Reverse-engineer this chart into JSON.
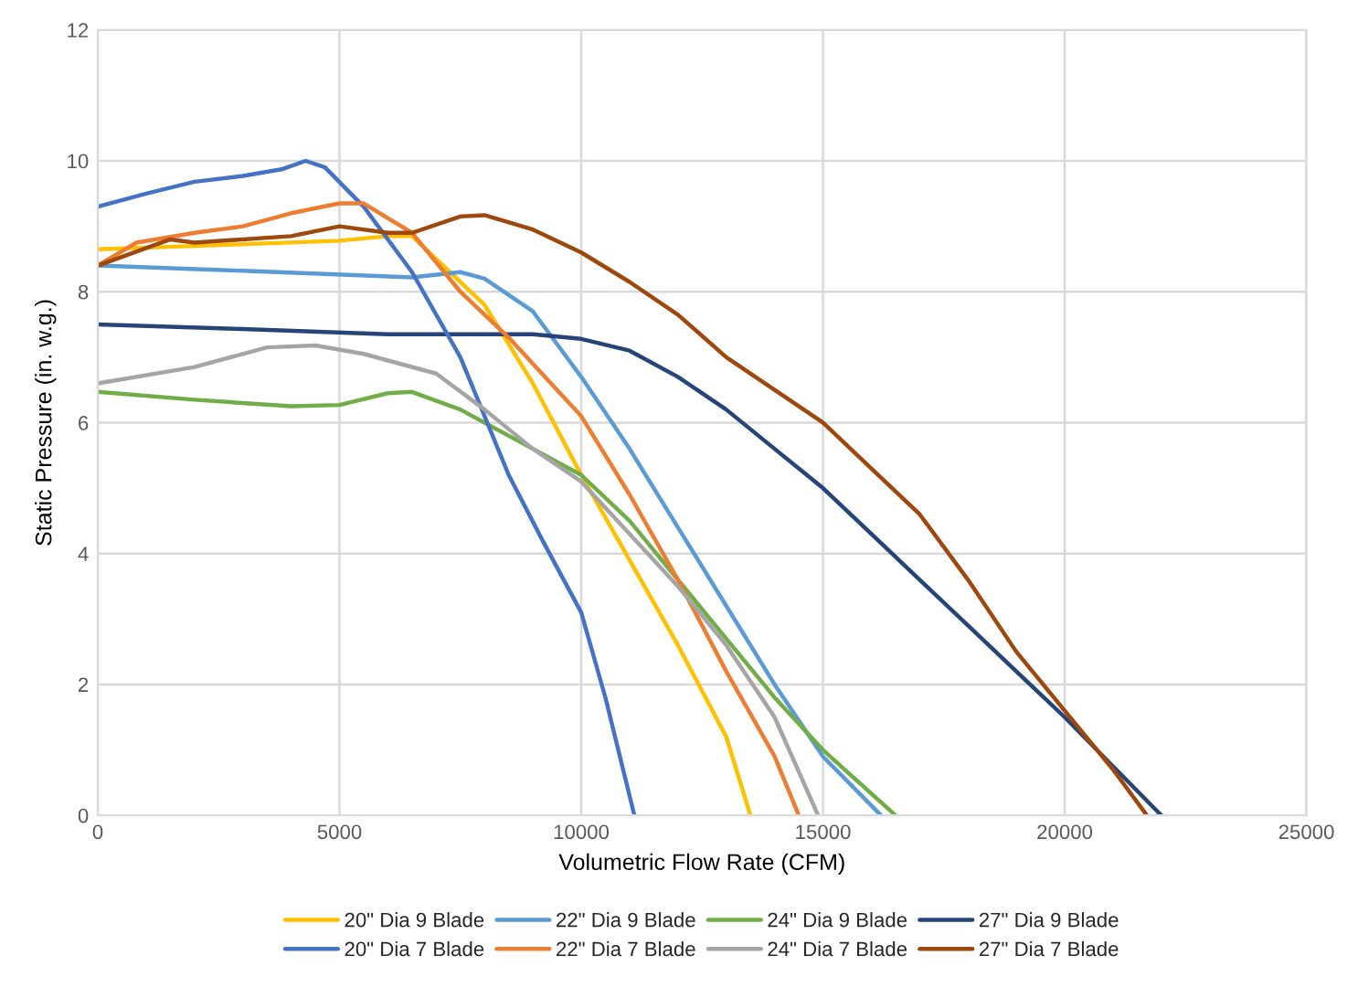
{
  "chart_data": {
    "type": "line",
    "xlabel": "Volumetric Flow Rate (CFM)",
    "ylabel": "Static Pressure (in. w.g.)",
    "xlim": [
      0,
      25000
    ],
    "xticks": [
      0,
      5000,
      10000,
      15000,
      20000,
      25000
    ],
    "ylim": [
      0,
      12
    ],
    "yticks": [
      0,
      2,
      4,
      6,
      8,
      10,
      12
    ],
    "grid": true,
    "legend": "bottom",
    "marker": "none",
    "line_style": "solid",
    "series": [
      {
        "name": "20\" Dia 9 Blade",
        "color": "#ffc000",
        "x": [
          0,
          2000,
          5000,
          6000,
          6500,
          7000,
          8000,
          9000,
          10000,
          11000,
          12000,
          13000,
          13500
        ],
        "values": [
          8.65,
          8.7,
          8.78,
          8.85,
          8.85,
          8.5,
          7.8,
          6.6,
          5.2,
          3.9,
          2.6,
          1.2,
          0
        ]
      },
      {
        "name": "22\" Dia 9 Blade",
        "color": "#5b9bd5",
        "x": [
          0,
          3000,
          6500,
          7500,
          8000,
          9000,
          10000,
          11000,
          12000,
          13000,
          14000,
          15000,
          16200
        ],
        "values": [
          8.4,
          8.32,
          8.22,
          8.3,
          8.2,
          7.7,
          6.7,
          5.6,
          4.4,
          3.2,
          2.0,
          0.9,
          0
        ]
      },
      {
        "name": "24\" Dia 9 Blade",
        "color": "#70ad47",
        "x": [
          0,
          2000,
          4000,
          5000,
          6000,
          6500,
          7500,
          9000,
          10000,
          11000,
          12000,
          13000,
          14000,
          15000,
          16500
        ],
        "values": [
          6.47,
          6.35,
          6.25,
          6.27,
          6.45,
          6.47,
          6.2,
          5.6,
          5.2,
          4.5,
          3.6,
          2.7,
          1.8,
          1.0,
          0
        ]
      },
      {
        "name": "27\" Dia 9 Blade",
        "color": "#264478",
        "x": [
          0,
          3000,
          6000,
          9000,
          10000,
          11000,
          12000,
          13000,
          14000,
          15000,
          16000,
          17000,
          18000,
          19000,
          20000,
          21000,
          22000
        ],
        "values": [
          7.5,
          7.43,
          7.35,
          7.35,
          7.28,
          7.1,
          6.7,
          6.2,
          5.6,
          5.0,
          4.3,
          3.6,
          2.9,
          2.2,
          1.5,
          0.75,
          0
        ]
      },
      {
        "name": "20\" Dia 7 Blade",
        "color": "#4472c4",
        "x": [
          0,
          1000,
          2000,
          3000,
          3800,
          4300,
          4700,
          5500,
          6500,
          7500,
          8500,
          9200,
          10000,
          10500,
          11100
        ],
        "values": [
          9.3,
          9.5,
          9.68,
          9.77,
          9.87,
          10.0,
          9.9,
          9.3,
          8.3,
          7.0,
          5.2,
          4.2,
          3.1,
          1.8,
          0
        ]
      },
      {
        "name": "22\" Dia 7 Blade",
        "color": "#ed7d31",
        "x": [
          0,
          800,
          2000,
          3000,
          4000,
          5000,
          5500,
          6500,
          7500,
          8500,
          9500,
          10000,
          11000,
          12000,
          13000,
          14000,
          14500
        ],
        "values": [
          8.4,
          8.75,
          8.9,
          9.0,
          9.2,
          9.35,
          9.35,
          8.9,
          8.0,
          7.3,
          6.5,
          6.1,
          4.9,
          3.6,
          2.2,
          0.9,
          0
        ]
      },
      {
        "name": "24\" Dia 7 Blade",
        "color": "#a5a5a5",
        "x": [
          0,
          2000,
          3500,
          4500,
          5500,
          7000,
          8000,
          9000,
          10000,
          11000,
          12000,
          13000,
          14000,
          14900
        ],
        "values": [
          6.6,
          6.85,
          7.15,
          7.18,
          7.05,
          6.75,
          6.2,
          5.6,
          5.1,
          4.3,
          3.5,
          2.6,
          1.5,
          0
        ]
      },
      {
        "name": "27\" Dia 7 Blade",
        "color": "#9e480e",
        "x": [
          0,
          1500,
          2000,
          4000,
          5000,
          6000,
          6500,
          7500,
          8000,
          9000,
          10000,
          11000,
          12000,
          13000,
          14000,
          15000,
          16000,
          17000,
          18000,
          19000,
          20000,
          21000,
          21700
        ],
        "values": [
          8.4,
          8.8,
          8.75,
          8.85,
          9.0,
          8.9,
          8.9,
          9.15,
          9.17,
          8.95,
          8.6,
          8.15,
          7.65,
          7.0,
          6.5,
          6.0,
          5.3,
          4.6,
          3.6,
          2.5,
          1.6,
          0.7,
          0
        ]
      }
    ]
  }
}
